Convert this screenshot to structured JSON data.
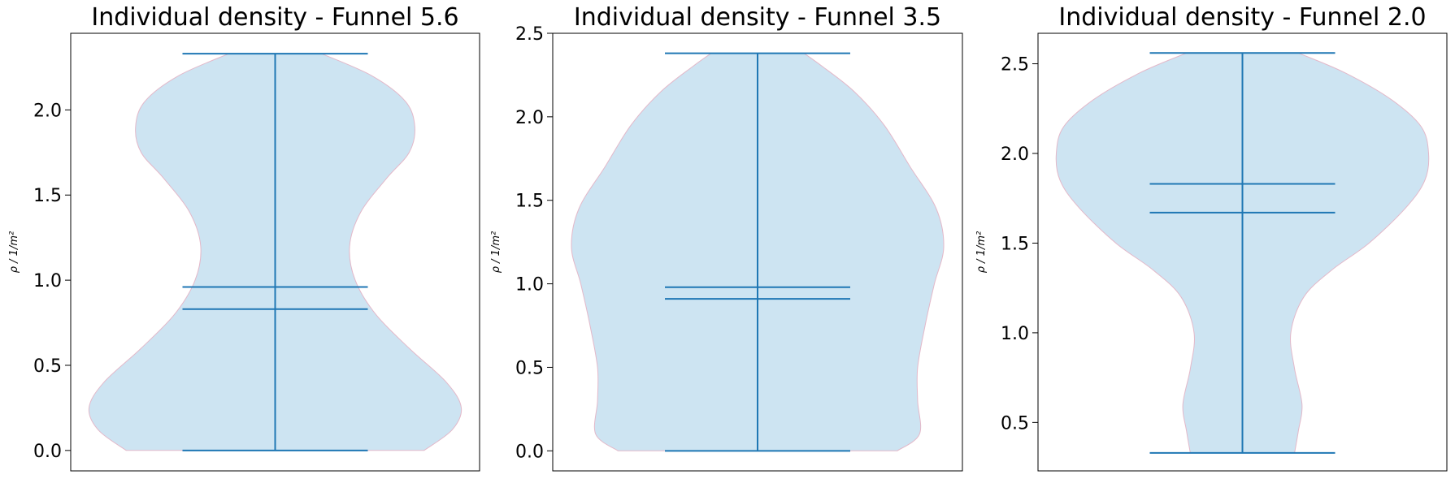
{
  "chart_data": [
    {
      "type": "violin",
      "title": "Individual density - Funnel 5.6",
      "ylabel": "ρ / 1/m²",
      "ylim": [
        -0.12,
        2.45
      ],
      "yticks": [
        "0.0",
        "0.5",
        "1.0",
        "1.5",
        "2.0"
      ],
      "ytick_values": [
        0.0,
        0.5,
        1.0,
        1.5,
        2.0
      ],
      "min": 0.0,
      "max": 2.33,
      "mean": 0.96,
      "median": 0.83,
      "density_profile": [
        [
          0.0,
          0.8
        ],
        [
          0.12,
          0.95
        ],
        [
          0.25,
          1.0
        ],
        [
          0.4,
          0.92
        ],
        [
          0.6,
          0.72
        ],
        [
          0.8,
          0.54
        ],
        [
          1.0,
          0.43
        ],
        [
          1.2,
          0.4
        ],
        [
          1.4,
          0.46
        ],
        [
          1.6,
          0.6
        ],
        [
          1.75,
          0.72
        ],
        [
          1.9,
          0.75
        ],
        [
          2.05,
          0.7
        ],
        [
          2.2,
          0.52
        ],
        [
          2.33,
          0.25
        ]
      ],
      "fill_color": "#cde4f2",
      "line_color": "#1f77b4"
    },
    {
      "type": "violin",
      "title": "Individual density - Funnel 3.5",
      "ylabel": "ρ / 1/m²",
      "ylim": [
        -0.12,
        2.5
      ],
      "yticks": [
        "0.0",
        "0.5",
        "1.0",
        "1.5",
        "2.0",
        "2.5"
      ],
      "ytick_values": [
        0.0,
        0.5,
        1.0,
        1.5,
        2.0,
        2.5
      ],
      "min": 0.0,
      "max": 2.38,
      "mean": 0.98,
      "median": 0.91,
      "density_profile": [
        [
          0.0,
          0.75
        ],
        [
          0.1,
          0.87
        ],
        [
          0.3,
          0.86
        ],
        [
          0.5,
          0.86
        ],
        [
          0.75,
          0.9
        ],
        [
          1.0,
          0.95
        ],
        [
          1.22,
          1.0
        ],
        [
          1.45,
          0.96
        ],
        [
          1.7,
          0.82
        ],
        [
          1.95,
          0.68
        ],
        [
          2.15,
          0.52
        ],
        [
          2.3,
          0.35
        ],
        [
          2.38,
          0.25
        ]
      ],
      "fill_color": "#cde4f2",
      "line_color": "#1f77b4"
    },
    {
      "type": "violin",
      "title": "Individual density - Funnel 2.0",
      "ylabel": "ρ / 1/m²",
      "ylim": [
        0.23,
        2.67
      ],
      "yticks": [
        "0.5",
        "1.0",
        "1.5",
        "2.0",
        "2.5"
      ],
      "ytick_values": [
        0.5,
        1.0,
        1.5,
        2.0,
        2.5
      ],
      "min": 0.33,
      "max": 2.56,
      "mean": 1.83,
      "median": 1.67,
      "density_profile": [
        [
          0.33,
          0.28
        ],
        [
          0.45,
          0.3
        ],
        [
          0.6,
          0.32
        ],
        [
          0.8,
          0.28
        ],
        [
          1.0,
          0.26
        ],
        [
          1.2,
          0.33
        ],
        [
          1.35,
          0.48
        ],
        [
          1.5,
          0.68
        ],
        [
          1.7,
          0.88
        ],
        [
          1.85,
          0.98
        ],
        [
          2.0,
          1.0
        ],
        [
          2.15,
          0.96
        ],
        [
          2.3,
          0.8
        ],
        [
          2.45,
          0.55
        ],
        [
          2.56,
          0.3
        ]
      ],
      "fill_color": "#cde4f2",
      "line_color": "#1f77b4"
    }
  ]
}
